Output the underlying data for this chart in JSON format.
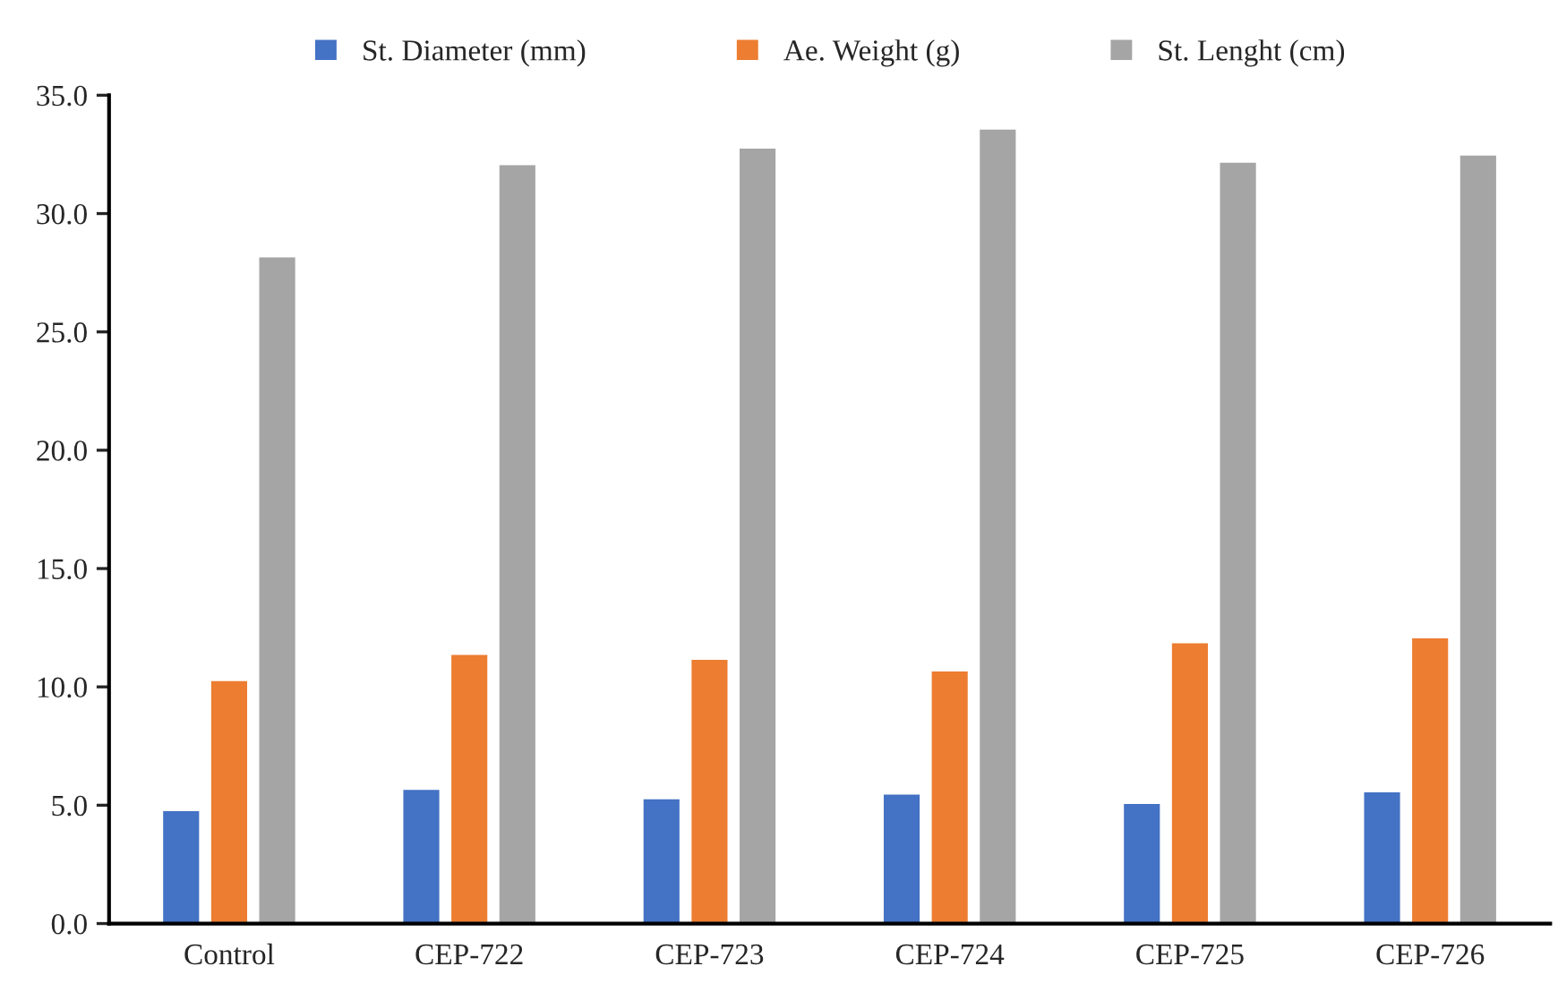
{
  "chart_data": {
    "type": "bar",
    "categories": [
      "Control",
      "CEP-722",
      "CEP-723",
      "CEP-724",
      "CEP-725",
      "CEP-726"
    ],
    "series": [
      {
        "name": "St. Diameter (mm)",
        "color": "#4472c4",
        "values": [
          4.8,
          5.7,
          5.3,
          5.5,
          5.1,
          5.6
        ]
      },
      {
        "name": "Ae. Weight (g)",
        "color": "#ed7d31",
        "values": [
          10.3,
          11.4,
          11.2,
          10.7,
          11.9,
          12.1
        ]
      },
      {
        "name": "St. Lenght (cm)",
        "color": "#a5a5a5",
        "values": [
          28.2,
          32.1,
          32.8,
          33.6,
          32.2,
          32.5
        ]
      }
    ],
    "ylim": [
      0,
      35
    ],
    "yticks": [
      {
        "value": 0,
        "label": "0.0"
      },
      {
        "value": 5,
        "label": "5.0"
      },
      {
        "value": 10,
        "label": "10.0"
      },
      {
        "value": 15,
        "label": "15.0"
      },
      {
        "value": 20,
        "label": "20.0"
      },
      {
        "value": 25,
        "label": "25.0"
      },
      {
        "value": 30,
        "label": "30.0"
      },
      {
        "value": 35,
        "label": "35.0"
      }
    ],
    "grid": false,
    "legend": "top"
  }
}
